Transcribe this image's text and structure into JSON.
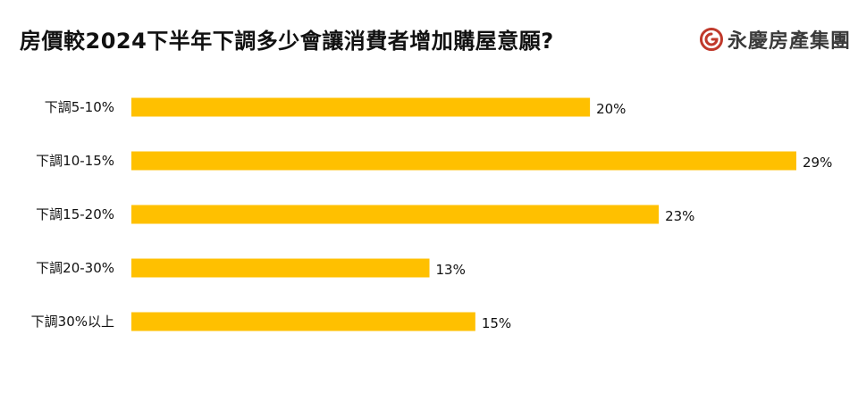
{
  "header": {
    "title": "房價較2024下半年下調多少會讓消費者增加購屋意願?"
  },
  "brand": {
    "name": "永慶房產集團",
    "icon": "yungching-logo-icon",
    "color": "#c0392b"
  },
  "colors": {
    "bar": "#ffc000",
    "text": "#111111"
  },
  "chart_data": {
    "type": "bar",
    "orientation": "horizontal",
    "title": "房價較2024下半年下調多少會讓消費者增加購屋意願?",
    "categories": [
      "下調5-10%",
      "下調10-15%",
      "下調15-20%",
      "下調20-30%",
      "下調30%以上"
    ],
    "values": [
      20,
      29,
      23,
      13,
      15
    ],
    "value_labels": [
      "20%",
      "29%",
      "23%",
      "13%",
      "15%"
    ],
    "unit": "%",
    "xlim": [
      0,
      29
    ],
    "grid": false,
    "legend": "none"
  }
}
